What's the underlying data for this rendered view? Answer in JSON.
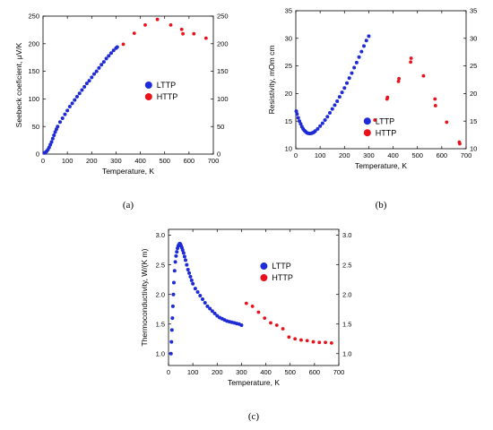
{
  "series_colors": {
    "LTTP": "#1f2bd4",
    "HTTP": "#e8121c"
  },
  "chart_data": [
    {
      "id": "a",
      "type": "scatter",
      "caption": "(a)",
      "xlabel": "Temperature, K",
      "ylabel": "Seebeck coeficient, μV/K",
      "xlim": [
        0,
        700
      ],
      "ylim": [
        0,
        250
      ],
      "xticks": [
        0,
        100,
        200,
        300,
        400,
        500,
        600,
        700
      ],
      "yticks": [
        0,
        50,
        100,
        150,
        200,
        250
      ],
      "right_axis": true,
      "legend": {
        "position": "center-right",
        "entries": [
          "LTTP",
          "HTTP"
        ]
      },
      "series": [
        {
          "name": "LTTP",
          "x": [
            5,
            10,
            15,
            20,
            25,
            30,
            35,
            40,
            45,
            50,
            55,
            60,
            70,
            80,
            90,
            100,
            110,
            120,
            130,
            140,
            150,
            160,
            170,
            180,
            190,
            200,
            210,
            220,
            230,
            240,
            250,
            260,
            270,
            280,
            290,
            300,
            305
          ],
          "y": [
            2,
            3,
            5,
            8,
            12,
            17,
            22,
            28,
            34,
            40,
            45,
            50,
            58,
            65,
            72,
            79,
            86,
            92,
            98,
            104,
            110,
            116,
            122,
            128,
            133,
            139,
            145,
            150,
            156,
            162,
            167,
            173,
            178,
            183,
            188,
            192,
            194
          ]
        },
        {
          "name": "HTTP",
          "x": [
            330,
            375,
            420,
            470,
            525,
            570,
            575,
            620,
            670
          ],
          "y": [
            199,
            219,
            234,
            244,
            234,
            226,
            218,
            218,
            210
          ]
        }
      ]
    },
    {
      "id": "b",
      "type": "scatter",
      "caption": "(b)",
      "xlabel": "Temperature, K",
      "ylabel": "Resistivity, mOm cm",
      "xlim": [
        0,
        700
      ],
      "ylim": [
        10,
        35
      ],
      "xticks": [
        0,
        100,
        200,
        300,
        400,
        500,
        600,
        700
      ],
      "yticks": [
        10,
        15,
        20,
        25,
        30,
        35
      ],
      "right_axis": true,
      "legend": {
        "position": "bottom-right",
        "entries": [
          "LTTP",
          "HTTP"
        ]
      },
      "series": [
        {
          "name": "LTTP",
          "x": [
            2,
            5,
            10,
            15,
            20,
            25,
            30,
            35,
            40,
            45,
            50,
            55,
            60,
            65,
            70,
            75,
            80,
            90,
            100,
            110,
            120,
            130,
            140,
            150,
            160,
            170,
            180,
            190,
            200,
            210,
            220,
            230,
            240,
            250,
            260,
            270,
            280,
            290,
            300
          ],
          "y": [
            16.8,
            16.3,
            15.6,
            15.0,
            14.5,
            14.0,
            13.6,
            13.3,
            13.1,
            12.9,
            12.8,
            12.75,
            12.75,
            12.8,
            12.9,
            13.0,
            13.2,
            13.6,
            14.1,
            14.6,
            15.2,
            15.8,
            16.5,
            17.2,
            17.9,
            18.6,
            19.4,
            20.2,
            21.0,
            21.9,
            22.8,
            23.7,
            24.7,
            25.6,
            26.6,
            27.6,
            28.6,
            29.6,
            30.4
          ]
        },
        {
          "name": "HTTP",
          "x": [
            325,
            375,
            377,
            422,
            424,
            472,
            474,
            525,
            572,
            574,
            620,
            672,
            674
          ],
          "y": [
            15.2,
            19.0,
            19.3,
            22.2,
            22.7,
            25.7,
            26.4,
            23.2,
            19.0,
            17.8,
            14.8,
            11.2,
            10.9
          ]
        }
      ]
    },
    {
      "id": "c",
      "type": "scatter",
      "caption": "(c)",
      "xlabel": "Temperature, K",
      "ylabel": "Thermoconductivity, W/(K m)",
      "xlim": [
        0,
        700
      ],
      "ylim": [
        0.8,
        3.1
      ],
      "xticks": [
        0,
        100,
        200,
        300,
        400,
        500,
        600,
        700
      ],
      "yticks": [
        1.0,
        1.5,
        2.0,
        2.5,
        3.0
      ],
      "right_axis": true,
      "legend": {
        "position": "top-right",
        "entries": [
          "LTTP",
          "HTTP"
        ]
      },
      "series": [
        {
          "name": "LTTP",
          "x": [
            10,
            12,
            14,
            16,
            18,
            20,
            22,
            25,
            28,
            31,
            34,
            37,
            40,
            43,
            46,
            49,
            52,
            55,
            58,
            62,
            66,
            70,
            75,
            80,
            85,
            90,
            95,
            100,
            110,
            120,
            130,
            140,
            150,
            160,
            170,
            180,
            190,
            200,
            210,
            220,
            230,
            240,
            250,
            260,
            270,
            280,
            290,
            300
          ],
          "y": [
            1.0,
            1.2,
            1.4,
            1.6,
            1.8,
            2.0,
            2.2,
            2.4,
            2.55,
            2.65,
            2.72,
            2.78,
            2.82,
            2.84,
            2.86,
            2.85,
            2.82,
            2.79,
            2.75,
            2.7,
            2.64,
            2.58,
            2.5,
            2.42,
            2.36,
            2.3,
            2.24,
            2.18,
            2.1,
            2.04,
            1.98,
            1.92,
            1.86,
            1.8,
            1.76,
            1.72,
            1.68,
            1.64,
            1.61,
            1.59,
            1.57,
            1.55,
            1.54,
            1.53,
            1.52,
            1.51,
            1.5,
            1.48
          ]
        },
        {
          "name": "HTTP",
          "x": [
            320,
            345,
            370,
            395,
            420,
            445,
            470,
            495,
            520,
            545,
            570,
            595,
            620,
            645,
            670
          ],
          "y": [
            1.85,
            1.8,
            1.7,
            1.6,
            1.52,
            1.48,
            1.42,
            1.28,
            1.25,
            1.23,
            1.22,
            1.2,
            1.19,
            1.19,
            1.18
          ]
        }
      ]
    }
  ]
}
